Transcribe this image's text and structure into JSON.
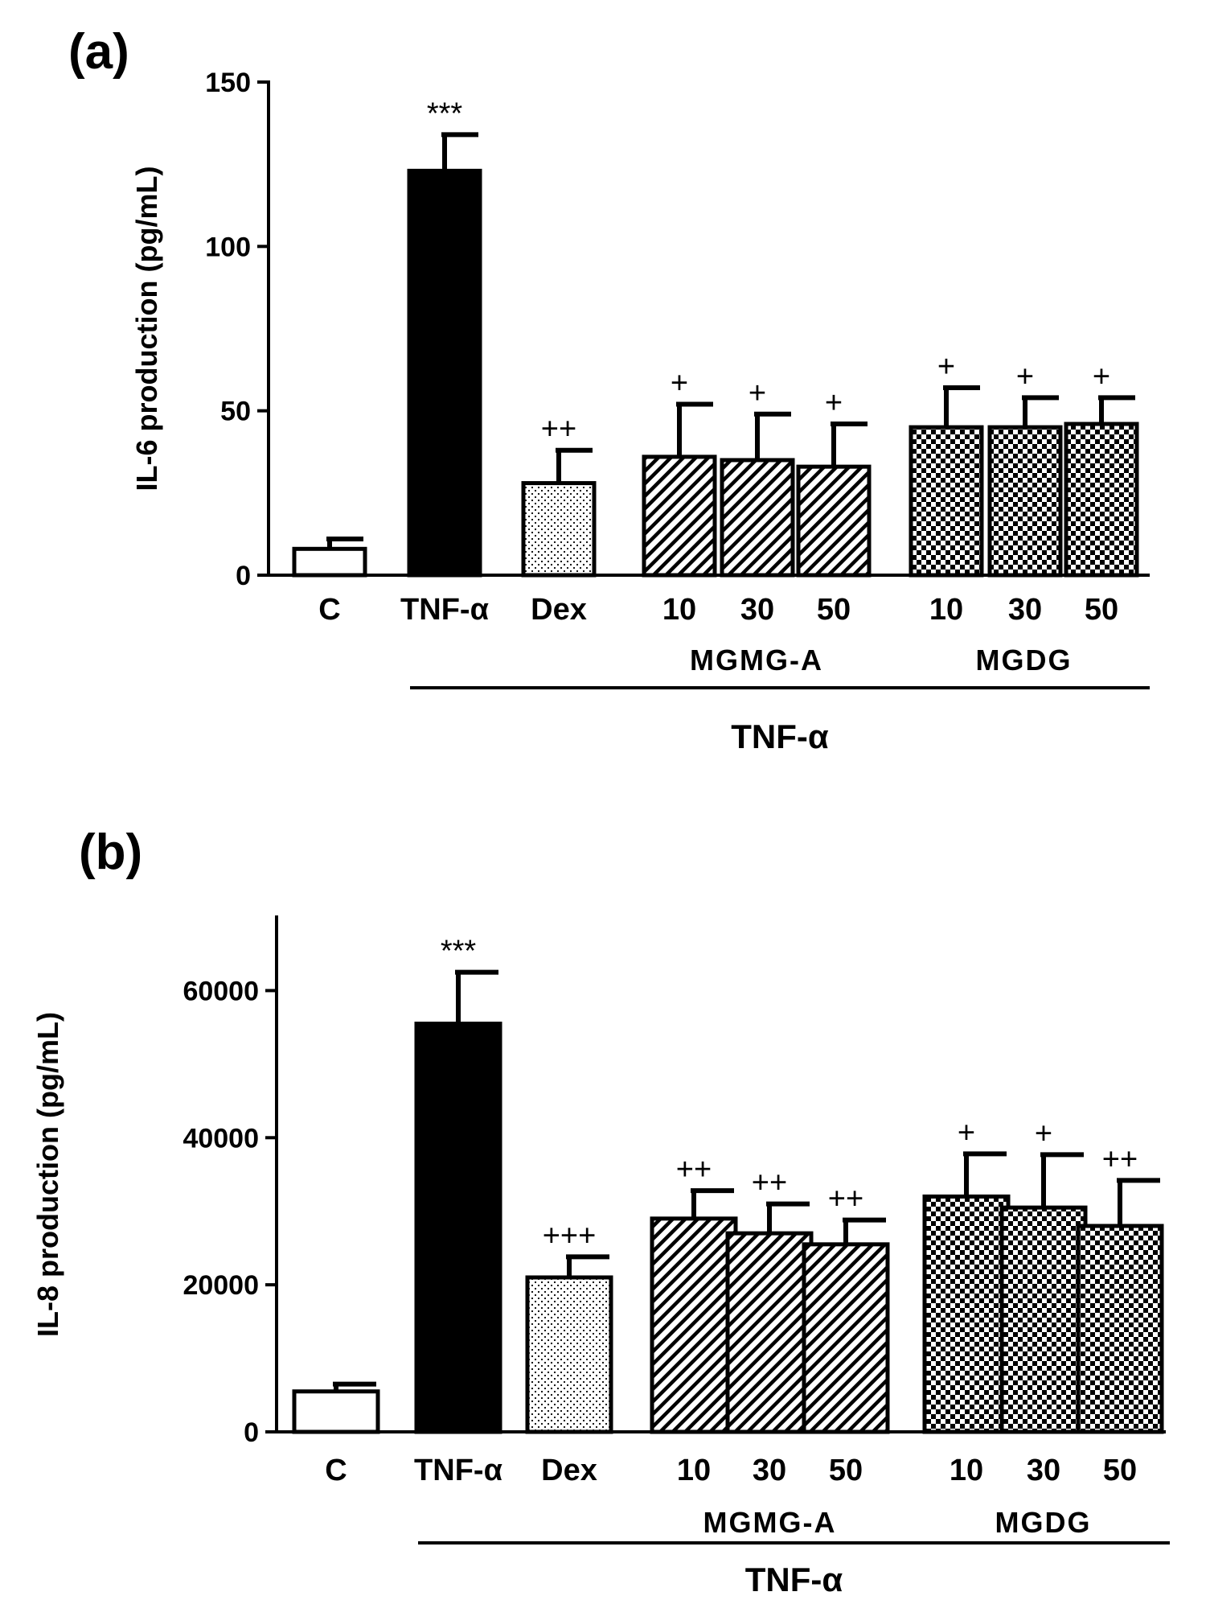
{
  "chart_data": [
    {
      "type": "bar",
      "panel_label": "(a)",
      "ylabel": "IL-6 production (pg/mL)",
      "ylim": [
        0,
        150
      ],
      "yticks": [
        "0",
        "50",
        "100",
        "150"
      ],
      "categories": [
        "C",
        "TNF-α",
        "Dex",
        "10",
        "30",
        "50",
        "10",
        "30",
        "50"
      ],
      "values": [
        8,
        123,
        28,
        36,
        35,
        33,
        45,
        45,
        46
      ],
      "errors": [
        3,
        11,
        10,
        16,
        14,
        13,
        12,
        9,
        8
      ],
      "fills": [
        "white",
        "black",
        "dots",
        "hatch",
        "hatch",
        "hatch",
        "checker",
        "checker",
        "checker"
      ],
      "significance": [
        "",
        "***",
        "++",
        "+",
        "+",
        "+",
        "+",
        "+",
        "+"
      ],
      "groups": [
        {
          "label": "MGMG-A",
          "span": [
            3,
            5
          ]
        },
        {
          "label": "MGDG",
          "span": [
            6,
            8
          ]
        }
      ],
      "treatment_label": "TNF-α",
      "treatment_span": [
        1,
        8
      ]
    },
    {
      "type": "bar",
      "panel_label": "(b)",
      "ylabel": "IL-8 production (pg/mL)",
      "ylim": [
        0,
        70000
      ],
      "yticks": [
        "0",
        "20000",
        "40000",
        "60000"
      ],
      "categories": [
        "C",
        "TNF-α",
        "Dex",
        "10",
        "30",
        "50",
        "10",
        "30",
        "50"
      ],
      "values": [
        5500,
        55500,
        21000,
        29000,
        27000,
        25500,
        32000,
        30500,
        28000
      ],
      "errors": [
        1000,
        7000,
        2800,
        3800,
        4000,
        3300,
        5800,
        7200,
        6200
      ],
      "fills": [
        "white",
        "black",
        "dots",
        "hatch",
        "hatch",
        "hatch",
        "checker",
        "checker",
        "checker"
      ],
      "significance": [
        "",
        "***",
        "+++",
        "++",
        "++",
        "++",
        "+",
        "+",
        "++"
      ],
      "groups": [
        {
          "label": "MGMG-A",
          "span": [
            3,
            5
          ]
        },
        {
          "label": "MGDG",
          "span": [
            6,
            8
          ]
        }
      ],
      "treatment_label": "TNF-α",
      "treatment_span": [
        1,
        8
      ]
    }
  ]
}
